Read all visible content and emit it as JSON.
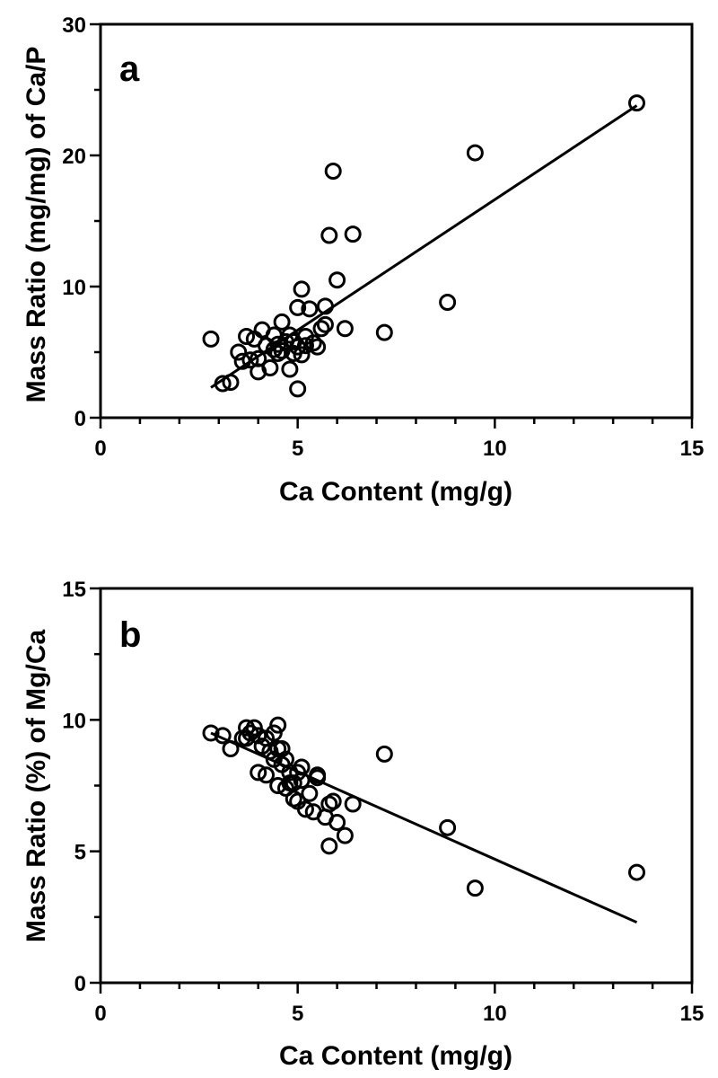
{
  "chart_data": [
    {
      "type": "scatter",
      "panel_label": "a",
      "xlabel": "Ca Content (mg/g)",
      "ylabel": "Mass Ratio (mg/mg) of Ca/P",
      "xlim": [
        0,
        15
      ],
      "ylim": [
        0,
        30
      ],
      "xticks": [
        "0",
        "5",
        "10",
        "15"
      ],
      "yticks": [
        "0",
        "10",
        "20",
        "30"
      ],
      "points": {
        "x": [
          2.8,
          3.1,
          3.3,
          3.5,
          3.6,
          3.7,
          3.8,
          3.9,
          4.0,
          4.0,
          4.1,
          4.2,
          4.3,
          4.4,
          4.4,
          4.5,
          4.5,
          4.6,
          4.6,
          4.7,
          4.8,
          4.8,
          4.9,
          4.9,
          5.0,
          5.0,
          5.0,
          5.1,
          5.1,
          5.2,
          5.2,
          5.3,
          5.4,
          5.5,
          5.6,
          5.7,
          5.7,
          5.8,
          5.9,
          6.0,
          6.2,
          6.4,
          7.2,
          8.8,
          9.5,
          13.6
        ],
        "y": [
          6.0,
          2.6,
          2.7,
          5.0,
          4.3,
          6.2,
          4.4,
          6.0,
          3.5,
          4.5,
          6.7,
          5.5,
          3.8,
          5.2,
          6.3,
          4.9,
          5.6,
          7.3,
          5.1,
          5.8,
          3.7,
          6.3,
          4.9,
          5.8,
          2.2,
          5.4,
          8.4,
          4.8,
          9.8,
          6.2,
          5.5,
          8.3,
          5.7,
          5.4,
          6.8,
          8.5,
          7.1,
          13.9,
          18.8,
          10.5,
          6.8,
          14.0,
          6.5,
          8.8,
          20.2,
          24.0
        ]
      },
      "fit_line": {
        "x": [
          2.8,
          13.6
        ],
        "y": [
          2.3,
          23.8
        ]
      }
    },
    {
      "type": "scatter",
      "panel_label": "b",
      "xlabel": "Ca Content (mg/g)",
      "ylabel": "Mass Ratio (%) of Mg/Ca",
      "xlim": [
        0,
        15
      ],
      "ylim": [
        0,
        15
      ],
      "xticks": [
        "0",
        "5",
        "10",
        "15"
      ],
      "yticks": [
        "0",
        "5",
        "10",
        "15"
      ],
      "points": {
        "x": [
          2.8,
          3.1,
          3.3,
          3.6,
          3.7,
          3.7,
          3.8,
          3.9,
          4.0,
          4.0,
          4.1,
          4.2,
          4.2,
          4.3,
          4.4,
          4.4,
          4.5,
          4.5,
          4.5,
          4.6,
          4.6,
          4.7,
          4.7,
          4.8,
          4.8,
          4.9,
          4.9,
          5.0,
          5.0,
          5.1,
          5.1,
          5.2,
          5.3,
          5.4,
          5.5,
          5.5,
          5.7,
          5.8,
          5.8,
          5.9,
          6.0,
          6.2,
          6.4,
          7.2,
          8.8,
          9.5,
          13.6
        ],
        "y": [
          9.5,
          9.4,
          8.9,
          9.3,
          9.7,
          9.3,
          9.5,
          9.7,
          8.0,
          9.4,
          9.0,
          9.3,
          7.9,
          8.8,
          9.5,
          8.5,
          9.8,
          8.9,
          7.5,
          8.3,
          8.9,
          7.4,
          8.5,
          8.0,
          7.6,
          7.0,
          7.6,
          8.0,
          6.9,
          7.7,
          8.2,
          6.6,
          7.2,
          6.5,
          7.8,
          7.9,
          6.3,
          6.8,
          5.2,
          6.9,
          6.1,
          5.6,
          6.8,
          8.7,
          5.9,
          3.6,
          4.2
        ]
      },
      "fit_line": {
        "x": [
          2.8,
          13.6
        ],
        "y": [
          9.5,
          2.3
        ]
      }
    }
  ]
}
